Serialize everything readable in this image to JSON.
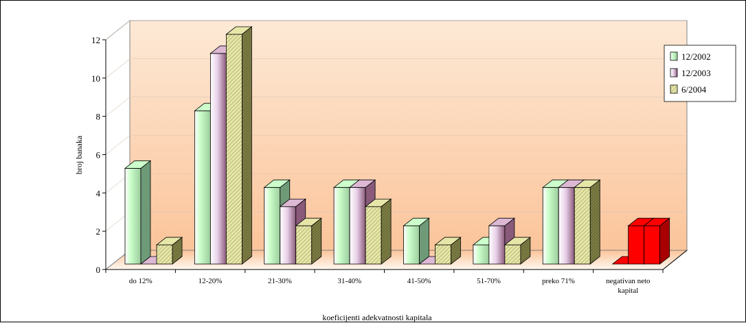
{
  "chart_data": {
    "type": "bar",
    "xlabel": "koeficijenti adekvatnosti kapitala",
    "ylabel": "broj banaka",
    "ylim": [
      0,
      12
    ],
    "yticks": [
      "0",
      "2",
      "4",
      "6",
      "8",
      "10",
      "12"
    ],
    "categories": [
      [
        "do 12%"
      ],
      [
        "12-20%"
      ],
      [
        "21-30%"
      ],
      [
        "31-40%"
      ],
      [
        "41-50%"
      ],
      [
        "51-70%"
      ],
      [
        "preko 71%"
      ],
      [
        "negativan neto",
        "kapital"
      ]
    ],
    "series": [
      {
        "name": "12/2002",
        "values": [
          5,
          8,
          4,
          4,
          2,
          1,
          4,
          0
        ]
      },
      {
        "name": "12/2003",
        "values": [
          0,
          11,
          3,
          4,
          0,
          2,
          4,
          2
        ]
      },
      {
        "name": "6/2004",
        "values": [
          1,
          12,
          2,
          3,
          1,
          1,
          4,
          2
        ]
      }
    ],
    "legend_position": "right",
    "colors": {
      "series_fill": [
        "#ccffcc",
        "#e8d0e8",
        "#e6e6a8"
      ],
      "series_shade": [
        "#6e9a78",
        "#8a5a7a",
        "#8a8a4c"
      ],
      "highlight_fill": "#ff0000",
      "highlight_shade": "#a80000",
      "wall_top": "#fde9d6",
      "wall_bottom": "#fbc49a"
    },
    "highlight_category_index": 7
  }
}
